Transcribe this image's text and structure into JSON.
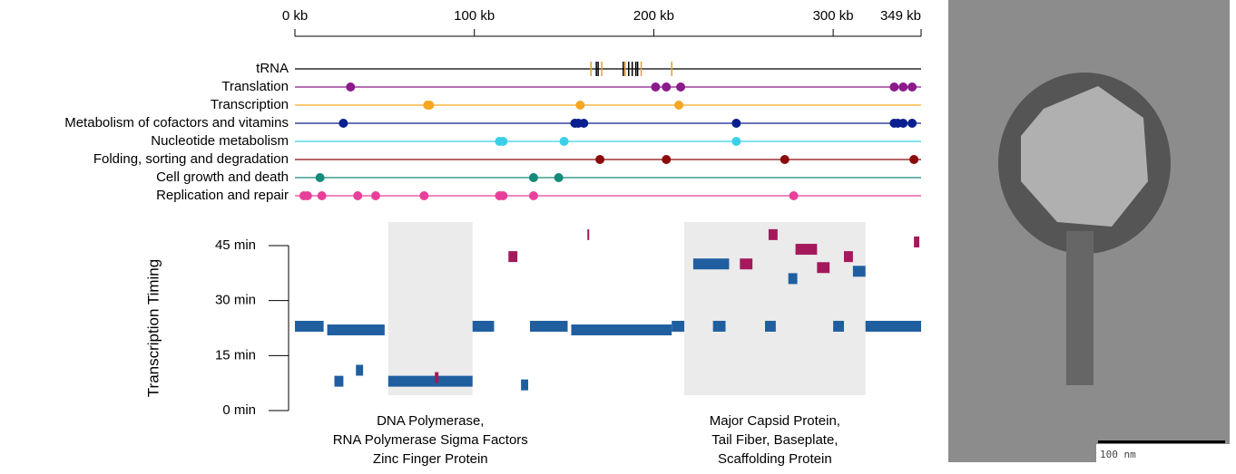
{
  "chart_data": [
    {
      "type": "track",
      "xlim": [
        0,
        349
      ],
      "xticks": [
        {
          "value": 0,
          "label": "0 kb"
        },
        {
          "value": 100,
          "label": "100 kb"
        },
        {
          "value": 200,
          "label": "200 kb"
        },
        {
          "value": 300,
          "label": "300 kb"
        },
        {
          "value": 349,
          "label": "349 kb"
        }
      ],
      "tracks": [
        {
          "name": "tRNA",
          "style": "ticks",
          "color": "#000000",
          "values": [
            165,
            168,
            169,
            171,
            183,
            184,
            186,
            188,
            190,
            191,
            193,
            210
          ],
          "colors": [
            "#e0a030",
            "#000000",
            "#000000",
            "#e0a030",
            "#000000",
            "#e0a030",
            "#000000",
            "#000000",
            "#000000",
            "#000000",
            "#e0a030",
            "#e0a030"
          ]
        },
        {
          "name": "Translation",
          "color": "#8b1a8b",
          "values": [
            31,
            201,
            207,
            215,
            334,
            339,
            344
          ]
        },
        {
          "name": "Transcription",
          "color": "#f5a623",
          "values": [
            74,
            75,
            159,
            214
          ]
        },
        {
          "name": "Metabolism of cofactors and vitamins",
          "color": "#0a1f8f",
          "values": [
            27,
            156,
            158,
            161,
            246,
            334,
            336,
            339,
            344
          ]
        },
        {
          "name": "Nucleotide metabolism",
          "color": "#3ad0e8",
          "values": [
            114,
            116,
            150,
            246
          ]
        },
        {
          "name": "Folding, sorting and degradation",
          "color": "#8b0a0a",
          "values": [
            170,
            207,
            273,
            345
          ]
        },
        {
          "name": "Cell growth and death",
          "color": "#148a7a",
          "values": [
            14,
            133,
            147
          ]
        },
        {
          "name": "Replication and repair",
          "color": "#e8409a",
          "values": [
            5,
            7,
            15,
            35,
            45,
            72,
            114,
            116,
            133,
            278
          ]
        }
      ]
    },
    {
      "type": "timeline",
      "y_label": "Transcription Timing",
      "xlim": [
        0,
        349
      ],
      "ylim": [
        0,
        45
      ],
      "yticks": [
        {
          "value": 0,
          "label": "0 min"
        },
        {
          "value": 15,
          "label": "15 min"
        },
        {
          "value": 30,
          "label": "30 min"
        },
        {
          "value": 45,
          "label": "45 min"
        }
      ],
      "highlights": [
        {
          "start": 52,
          "end": 99,
          "lines": [
            "DNA Polymerase,",
            "RNA Polymerase Sigma Factors",
            "Zinc Finger Protein"
          ]
        },
        {
          "start": 217,
          "end": 318,
          "lines": [
            "Major Capsid Protein,",
            "Tail Fiber, Baseplate,",
            "Scaffolding Protein"
          ]
        }
      ],
      "series": [
        {
          "color": "#1f5fa0",
          "segments": [
            [
              0,
              16,
              23
            ],
            [
              18,
              50,
              22
            ],
            [
              22,
              27,
              8
            ],
            [
              34,
              38,
              11
            ],
            [
              52,
              99,
              8
            ],
            [
              99,
              111,
              23
            ],
            [
              126,
              130,
              7
            ],
            [
              131,
              152,
              23
            ],
            [
              154,
              210,
              22
            ],
            [
              210,
              217,
              23
            ],
            [
              222,
              242,
              40
            ],
            [
              233,
              240,
              23
            ],
            [
              262,
              268,
              23
            ],
            [
              275,
              280,
              36
            ],
            [
              300,
              306,
              23
            ],
            [
              311,
              318,
              38
            ],
            [
              318,
              349,
              23
            ]
          ]
        },
        {
          "color": "#a3195b",
          "segments": [
            [
              78,
              80,
              9
            ],
            [
              119,
              124,
              42
            ],
            [
              163,
              164,
              48
            ],
            [
              248,
              255,
              40
            ],
            [
              264,
              269,
              48
            ],
            [
              279,
              291,
              44
            ],
            [
              291,
              298,
              39
            ],
            [
              306,
              311,
              42
            ],
            [
              345,
              348,
              46
            ]
          ]
        }
      ]
    }
  ],
  "image": {
    "scale_label": "100 nm"
  }
}
